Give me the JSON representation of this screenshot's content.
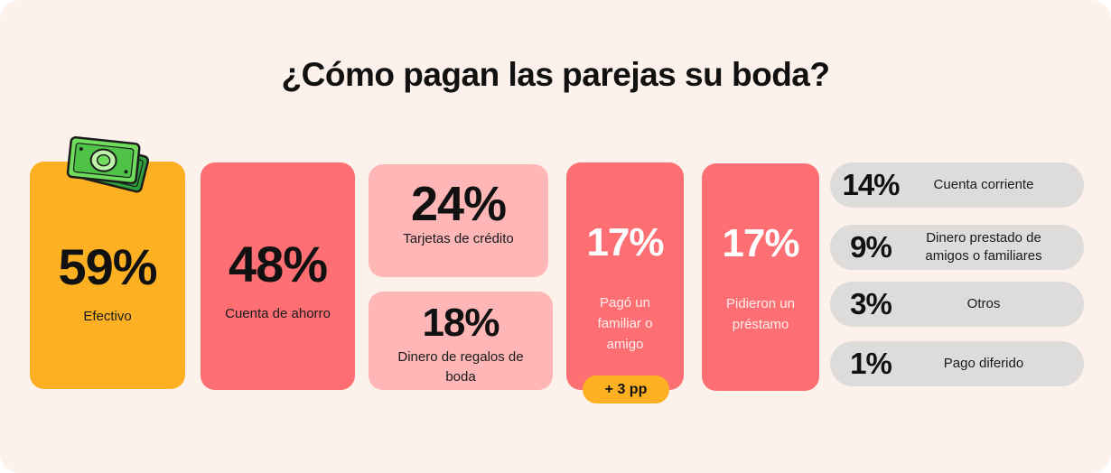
{
  "colors": {
    "background": "#fdf1ec",
    "cash": "#fdb122",
    "coral": "#fd6f72",
    "pink": "#ffb6b7",
    "gray": "#dddcdb",
    "badge": "#fdb122"
  },
  "icon": "money-bills-icon",
  "chart_data": {
    "type": "bar",
    "title": "¿Cómo pagan las parejas su boda?",
    "unit": "%",
    "categories": [
      "Efectivo",
      "Cuenta de ahorro",
      "Tarjetas de crédito",
      "Dinero de regalos de boda",
      "Pagó un familiar o amigo",
      "Pidieron un préstamo",
      "Cuenta corriente",
      "Dinero prestado de amigos o familiares",
      "Otros",
      "Pago diferido"
    ],
    "values": [
      59,
      48,
      24,
      18,
      17,
      17,
      14,
      9,
      3,
      1
    ],
    "cards": [
      {
        "id": "cash",
        "pct_text": "59%",
        "label": "Efectivo"
      },
      {
        "id": "savings",
        "pct_text": "48%",
        "label": "Cuenta de ahorro"
      },
      {
        "id": "credit",
        "pct_text": "24%",
        "label": "Tarjetas de crédito"
      },
      {
        "id": "gifts",
        "pct_text": "18%",
        "label": "Dinero de regalos de boda"
      },
      {
        "id": "family",
        "pct_text": "17%",
        "label": "Pagó un familiar o amigo",
        "badge": "+ 3 pp"
      },
      {
        "id": "loan",
        "pct_text": "17%",
        "label": "Pidieron un préstamo"
      }
    ],
    "rows": [
      {
        "pct_text": "14%",
        "label": "Cuenta corriente"
      },
      {
        "pct_text": "9%",
        "label": "Dinero prestado de amigos o familiares"
      },
      {
        "pct_text": "3%",
        "label": "Otros"
      },
      {
        "pct_text": "1%",
        "label": "Pago diferido"
      }
    ]
  }
}
